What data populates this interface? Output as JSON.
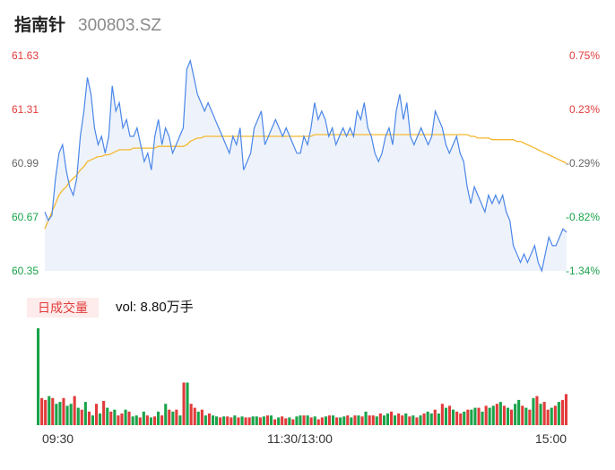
{
  "header": {
    "name": "指南针",
    "code": "300803.SZ"
  },
  "colors": {
    "price_line": "#4a86e8",
    "avg_line": "#f5b72e",
    "up": "#e23b3b",
    "down": "#1aa34a",
    "flat": "#666666",
    "area_fill": "#eef3fb"
  },
  "chart_data": {
    "type": "line",
    "price_axis": {
      "ylim": [
        60.35,
        61.63
      ],
      "ticks": [
        "61.63",
        "61.31",
        "60.99",
        "60.67",
        "60.35"
      ],
      "pct_ticks": [
        "0.75%",
        "0.23%",
        "-0.29%",
        "-0.82%",
        "-1.34%"
      ],
      "pct_colors": [
        "#e23b3b",
        "#e23b3b",
        "#666666",
        "#1aa34a",
        "#1aa34a"
      ],
      "tick_colors": [
        "#e23b3b",
        "#e23b3b",
        "#666666",
        "#1aa34a",
        "#1aa34a"
      ]
    },
    "x_ticks": [
      "09:30",
      "11:30/13:00",
      "15:00"
    ],
    "series": [
      {
        "values": [
          60.7,
          60.65,
          60.68,
          60.9,
          61.05,
          61.1,
          60.95,
          60.85,
          60.8,
          60.9,
          61.15,
          61.3,
          61.5,
          61.4,
          61.2,
          61.1,
          61.15,
          61.05,
          61.15,
          61.45,
          61.3,
          61.35,
          61.2,
          61.25,
          61.15,
          61.15,
          61.2,
          61.1,
          61.0,
          61.05,
          60.95,
          61.15,
          61.25,
          61.1,
          61.2,
          61.15,
          61.05,
          61.1,
          61.15,
          61.2,
          61.55,
          61.6,
          61.5,
          61.4,
          61.35,
          61.3,
          61.35,
          61.3,
          61.25,
          61.2,
          61.15,
          61.1,
          61.05,
          61.15,
          61.1,
          61.2,
          60.95,
          61.0,
          61.05,
          61.2,
          61.25,
          61.3,
          61.1,
          61.15,
          61.2,
          61.25,
          61.2,
          61.15,
          61.2,
          61.15,
          61.1,
          61.05,
          61.05,
          61.15,
          61.1,
          61.2,
          61.35,
          61.25,
          61.3,
          61.25,
          61.15,
          61.2,
          61.1,
          61.15,
          61.2,
          61.15,
          61.2,
          61.15,
          61.3,
          61.25,
          61.35,
          61.2,
          61.15,
          61.05,
          61.0,
          61.05,
          61.15,
          61.2,
          61.1,
          61.3,
          61.4,
          61.25,
          61.35,
          61.15,
          61.1,
          61.15,
          61.2,
          61.15,
          61.1,
          61.15,
          61.3,
          61.25,
          61.2,
          61.1,
          61.05,
          61.1,
          61.15,
          61.05,
          61.0,
          60.85,
          60.75,
          60.85,
          60.8,
          60.75,
          60.7,
          60.8,
          60.75,
          60.8,
          60.75,
          60.8,
          60.7,
          60.65,
          60.5,
          60.45,
          60.4,
          60.45,
          60.4,
          60.45,
          60.5,
          60.4,
          60.35,
          60.45,
          60.55,
          60.5,
          60.5,
          60.55,
          60.6,
          60.58
        ]
      },
      {
        "values": [
          60.6,
          60.65,
          60.7,
          60.75,
          60.8,
          60.83,
          60.85,
          60.88,
          60.9,
          60.92,
          60.95,
          60.97,
          61.0,
          61.01,
          61.02,
          61.03,
          61.03,
          61.04,
          61.04,
          61.05,
          61.06,
          61.07,
          61.07,
          61.07,
          61.07,
          61.08,
          61.08,
          61.08,
          61.08,
          61.08,
          61.08,
          61.08,
          61.09,
          61.09,
          61.09,
          61.09,
          61.09,
          61.09,
          61.09,
          61.09,
          61.1,
          61.12,
          61.13,
          61.14,
          61.14,
          61.15,
          61.15,
          61.15,
          61.15,
          61.15,
          61.15,
          61.15,
          61.15,
          61.15,
          61.15,
          61.15,
          61.15,
          61.15,
          61.15,
          61.15,
          61.15,
          61.15,
          61.15,
          61.15,
          61.15,
          61.15,
          61.15,
          61.15,
          61.15,
          61.15,
          61.15,
          61.15,
          61.15,
          61.15,
          61.15,
          61.15,
          61.16,
          61.16,
          61.16,
          61.16,
          61.16,
          61.16,
          61.16,
          61.16,
          61.16,
          61.16,
          61.16,
          61.16,
          61.16,
          61.16,
          61.16,
          61.16,
          61.16,
          61.16,
          61.16,
          61.16,
          61.16,
          61.16,
          61.16,
          61.16,
          61.16,
          61.16,
          61.16,
          61.16,
          61.16,
          61.16,
          61.16,
          61.16,
          61.16,
          61.16,
          61.16,
          61.16,
          61.16,
          61.16,
          61.16,
          61.16,
          61.16,
          61.16,
          61.16,
          61.16,
          61.15,
          61.15,
          61.14,
          61.14,
          61.14,
          61.14,
          61.13,
          61.13,
          61.13,
          61.13,
          61.13,
          61.13,
          61.13,
          61.12,
          61.12,
          61.11,
          61.1,
          61.09,
          61.08,
          61.07,
          61.06,
          61.05,
          61.04,
          61.03,
          61.02,
          61.01,
          61.0,
          60.99
        ]
      }
    ]
  },
  "volume": {
    "label": "日成交量",
    "text": "vol: 8.80万手",
    "bars": [
      100,
      28,
      26,
      30,
      28,
      22,
      24,
      28,
      20,
      22,
      30,
      18,
      16,
      24,
      14,
      10,
      22,
      12,
      25,
      18,
      14,
      16,
      10,
      12,
      16,
      14,
      9,
      10,
      8,
      14,
      10,
      8,
      9,
      14,
      10,
      22,
      16,
      14,
      16,
      10,
      44,
      44,
      22,
      18,
      14,
      16,
      10,
      12,
      10,
      9,
      8,
      9,
      9,
      8,
      10,
      8,
      9,
      8,
      8,
      9,
      9,
      8,
      9,
      10,
      10,
      6,
      8,
      9,
      7,
      8,
      6,
      9,
      10,
      10,
      10,
      8,
      9,
      6,
      8,
      9,
      10,
      10,
      8,
      8,
      9,
      10,
      8,
      10,
      10,
      9,
      14,
      10,
      10,
      9,
      12,
      10,
      12,
      14,
      10,
      12,
      10,
      12,
      9,
      10,
      8,
      10,
      12,
      14,
      12,
      16,
      12,
      22,
      18,
      20,
      16,
      14,
      12,
      14,
      16,
      16,
      18,
      18,
      14,
      20,
      18,
      20,
      22,
      24,
      20,
      18,
      16,
      22,
      26,
      20,
      18,
      16,
      28,
      30,
      22,
      24,
      16,
      18,
      20,
      24,
      26,
      32
    ],
    "bar_dirs": [
      "down",
      "up",
      "up",
      "down",
      "up",
      "down",
      "down",
      "up",
      "down",
      "down",
      "up",
      "down",
      "up",
      "down",
      "up",
      "down",
      "up",
      "down",
      "up",
      "down",
      "up",
      "down",
      "up",
      "up",
      "down",
      "up",
      "down",
      "down",
      "up",
      "down",
      "up",
      "down",
      "up",
      "down",
      "up",
      "down",
      "up",
      "down",
      "up",
      "down",
      "up",
      "down",
      "up",
      "up",
      "down",
      "up",
      "down",
      "up",
      "down",
      "down",
      "up",
      "down",
      "up",
      "up",
      "down",
      "up",
      "down",
      "up",
      "up",
      "down",
      "down",
      "up",
      "down",
      "up",
      "down",
      "up",
      "down",
      "up",
      "up",
      "down",
      "up",
      "down",
      "down",
      "up",
      "down",
      "up",
      "down",
      "up",
      "up",
      "down",
      "up",
      "down",
      "up",
      "down",
      "down",
      "up",
      "down",
      "up",
      "down",
      "up",
      "down",
      "up",
      "up",
      "down",
      "up",
      "down",
      "down",
      "up",
      "down",
      "up",
      "up",
      "down",
      "up",
      "down",
      "up",
      "down",
      "up",
      "down",
      "down",
      "up",
      "down",
      "up",
      "down",
      "up",
      "down",
      "up",
      "up",
      "down",
      "up",
      "down",
      "down",
      "up",
      "down",
      "up",
      "down",
      "down",
      "up",
      "down",
      "up",
      "down",
      "up",
      "down",
      "down",
      "up",
      "down",
      "up",
      "down",
      "up",
      "down",
      "up",
      "up",
      "down",
      "up",
      "down",
      "up",
      "up"
    ]
  }
}
